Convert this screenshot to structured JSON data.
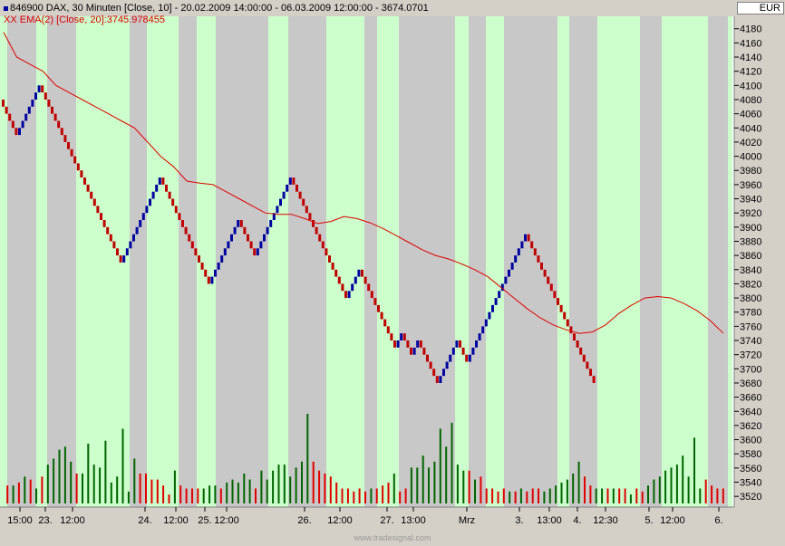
{
  "header": {
    "line1": "846900  DAX, 30 Minuten [Close, 10] - 20.02.2009 14:00:00 - 06.03.2009 12:00:00 - 3674.0701",
    "line2": "XX EMA(2) [Close, 20]:3745.978455"
  },
  "currency": "EUR",
  "footer": "www.tradesignal.com",
  "colors": {
    "up_brick": "#0000a0",
    "down_brick": "#c00000",
    "ema": "#e00000",
    "volume_up": "#006400",
    "volume_down": "#e00000",
    "band_green": "#ccffcc",
    "band_gray": "#c8c8c8",
    "background": "#d4d0c8"
  },
  "chart_data": {
    "type": "renko",
    "brick_size": 10,
    "ylim": [
      3510,
      4195
    ],
    "yticks": [
      3520,
      3540,
      3560,
      3580,
      3600,
      3620,
      3640,
      3660,
      3680,
      3700,
      3720,
      3740,
      3760,
      3780,
      3800,
      3820,
      3840,
      3860,
      3880,
      3900,
      3920,
      3940,
      3960,
      3980,
      4000,
      4020,
      4040,
      4060,
      4080,
      4100,
      4120,
      4140,
      4160,
      4180
    ],
    "xtick_labels": [
      "15:00",
      "23.",
      "12:00",
      "24.",
      "12:00",
      "25.",
      "12:00",
      "26.",
      "12:00",
      "27.",
      "13:00",
      "Mrz",
      "3.",
      "13:00",
      "4.",
      "12:30",
      "5.",
      "12:00",
      "6."
    ],
    "renko_pivots": [
      4070,
      4030,
      4100,
      3850,
      3970,
      3820,
      3910,
      3860,
      3970,
      3800,
      3840,
      3730,
      3750,
      3720,
      3740,
      3680,
      3740,
      3710,
      3890,
      3680
    ],
    "ema_series": [
      4175,
      4140,
      4130,
      4120,
      4100,
      4090,
      4080,
      4070,
      4060,
      4050,
      4040,
      4020,
      4000,
      3985,
      3965,
      3962,
      3960,
      3950,
      3940,
      3930,
      3920,
      3918,
      3918,
      3912,
      3905,
      3908,
      3915,
      3912,
      3906,
      3898,
      3888,
      3878,
      3868,
      3860,
      3855,
      3848,
      3840,
      3830,
      3815,
      3800,
      3785,
      3772,
      3762,
      3755,
      3750,
      3752,
      3762,
      3778,
      3790,
      3800,
      3802,
      3800,
      3792,
      3782,
      3768,
      3750
    ],
    "volume": [
      {
        "dir": "down",
        "v": 0.6
      },
      {
        "dir": "up",
        "v": 0.6
      },
      {
        "dir": "down",
        "v": 0.7
      },
      {
        "dir": "up",
        "v": 0.9
      },
      {
        "dir": "down",
        "v": 0.8
      },
      {
        "dir": "up",
        "v": 0.5
      },
      {
        "dir": "down",
        "v": 0.9
      },
      {
        "dir": "up",
        "v": 1.3
      },
      {
        "dir": "up",
        "v": 1.5
      },
      {
        "dir": "up",
        "v": 1.8
      },
      {
        "dir": "up",
        "v": 1.9
      },
      {
        "dir": "up",
        "v": 1.4
      },
      {
        "dir": "down",
        "v": 1.0
      },
      {
        "dir": "up",
        "v": 1.0
      },
      {
        "dir": "up",
        "v": 2.0
      },
      {
        "dir": "up",
        "v": 1.3
      },
      {
        "dir": "up",
        "v": 1.2
      },
      {
        "dir": "up",
        "v": 2.1
      },
      {
        "dir": "up",
        "v": 0.7
      },
      {
        "dir": "up",
        "v": 0.9
      },
      {
        "dir": "up",
        "v": 2.5
      },
      {
        "dir": "up",
        "v": 0.4
      },
      {
        "dir": "up",
        "v": 1.5
      },
      {
        "dir": "down",
        "v": 1.0
      },
      {
        "dir": "down",
        "v": 1.0
      },
      {
        "dir": "down",
        "v": 0.8
      },
      {
        "dir": "down",
        "v": 0.8
      },
      {
        "dir": "down",
        "v": 0.6
      },
      {
        "dir": "down",
        "v": 0.3
      },
      {
        "dir": "up",
        "v": 1.1
      },
      {
        "dir": "down",
        "v": 0.6
      },
      {
        "dir": "down",
        "v": 0.5
      },
      {
        "dir": "down",
        "v": 0.5
      },
      {
        "dir": "down",
        "v": 0.5
      },
      {
        "dir": "up",
        "v": 0.5
      },
      {
        "dir": "up",
        "v": 0.6
      },
      {
        "dir": "up",
        "v": 0.6
      },
      {
        "dir": "down",
        "v": 0.5
      },
      {
        "dir": "up",
        "v": 0.7
      },
      {
        "dir": "up",
        "v": 0.8
      },
      {
        "dir": "up",
        "v": 0.7
      },
      {
        "dir": "up",
        "v": 1.0
      },
      {
        "dir": "up",
        "v": 0.8
      },
      {
        "dir": "down",
        "v": 0.5
      },
      {
        "dir": "up",
        "v": 1.1
      },
      {
        "dir": "up",
        "v": 0.8
      },
      {
        "dir": "up",
        "v": 1.1
      },
      {
        "dir": "up",
        "v": 1.3
      },
      {
        "dir": "up",
        "v": 1.3
      },
      {
        "dir": "up",
        "v": 0.9
      },
      {
        "dir": "up",
        "v": 1.2
      },
      {
        "dir": "up",
        "v": 1.4
      },
      {
        "dir": "up",
        "v": 3.0
      },
      {
        "dir": "down",
        "v": 1.4
      },
      {
        "dir": "down",
        "v": 1.1
      },
      {
        "dir": "down",
        "v": 1.0
      },
      {
        "dir": "down",
        "v": 0.9
      },
      {
        "dir": "down",
        "v": 0.7
      },
      {
        "dir": "down",
        "v": 0.5
      },
      {
        "dir": "down",
        "v": 0.5
      },
      {
        "dir": "down",
        "v": 0.4
      },
      {
        "dir": "down",
        "v": 0.5
      },
      {
        "dir": "down",
        "v": 0.4
      },
      {
        "dir": "up",
        "v": 0.5
      },
      {
        "dir": "down",
        "v": 0.5
      },
      {
        "dir": "down",
        "v": 0.6
      },
      {
        "dir": "down",
        "v": 0.7
      },
      {
        "dir": "up",
        "v": 1.0
      },
      {
        "dir": "down",
        "v": 0.4
      },
      {
        "dir": "down",
        "v": 0.5
      },
      {
        "dir": "up",
        "v": 1.2
      },
      {
        "dir": "up",
        "v": 1.2
      },
      {
        "dir": "up",
        "v": 1.6
      },
      {
        "dir": "up",
        "v": 1.2
      },
      {
        "dir": "up",
        "v": 1.4
      },
      {
        "dir": "up",
        "v": 2.5
      },
      {
        "dir": "up",
        "v": 1.9
      },
      {
        "dir": "up",
        "v": 2.7
      },
      {
        "dir": "up",
        "v": 1.3
      },
      {
        "dir": "up",
        "v": 1.1
      },
      {
        "dir": "down",
        "v": 1.1
      },
      {
        "dir": "up",
        "v": 0.8
      },
      {
        "dir": "down",
        "v": 0.9
      },
      {
        "dir": "down",
        "v": 0.5
      },
      {
        "dir": "down",
        "v": 0.5
      },
      {
        "dir": "down",
        "v": 0.4
      },
      {
        "dir": "down",
        "v": 0.5
      },
      {
        "dir": "up",
        "v": 0.4
      },
      {
        "dir": "down",
        "v": 0.4
      },
      {
        "dir": "up",
        "v": 0.5
      },
      {
        "dir": "down",
        "v": 0.4
      },
      {
        "dir": "down",
        "v": 0.5
      },
      {
        "dir": "down",
        "v": 0.5
      },
      {
        "dir": "up",
        "v": 0.4
      },
      {
        "dir": "up",
        "v": 0.5
      },
      {
        "dir": "up",
        "v": 0.6
      },
      {
        "dir": "up",
        "v": 0.7
      },
      {
        "dir": "up",
        "v": 0.8
      },
      {
        "dir": "up",
        "v": 1.0
      },
      {
        "dir": "up",
        "v": 1.4
      },
      {
        "dir": "down",
        "v": 0.9
      },
      {
        "dir": "down",
        "v": 0.6
      },
      {
        "dir": "up",
        "v": 0.5
      },
      {
        "dir": "up",
        "v": 0.5
      },
      {
        "dir": "down",
        "v": 0.5
      },
      {
        "dir": "up",
        "v": 0.5
      },
      {
        "dir": "down",
        "v": 0.5
      },
      {
        "dir": "down",
        "v": 0.5
      },
      {
        "dir": "up",
        "v": 0.3
      },
      {
        "dir": "down",
        "v": 0.5
      },
      {
        "dir": "down",
        "v": 0.4
      },
      {
        "dir": "up",
        "v": 0.6
      },
      {
        "dir": "up",
        "v": 0.8
      },
      {
        "dir": "up",
        "v": 0.9
      },
      {
        "dir": "up",
        "v": 1.1
      },
      {
        "dir": "up",
        "v": 1.2
      },
      {
        "dir": "up",
        "v": 1.3
      },
      {
        "dir": "up",
        "v": 1.6
      },
      {
        "dir": "up",
        "v": 0.9
      },
      {
        "dir": "up",
        "v": 2.2
      },
      {
        "dir": "up",
        "v": 0.5
      },
      {
        "dir": "down",
        "v": 0.8
      },
      {
        "dir": "down",
        "v": 0.6
      },
      {
        "dir": "down",
        "v": 0.5
      },
      {
        "dir": "down",
        "v": 0.5
      }
    ]
  }
}
